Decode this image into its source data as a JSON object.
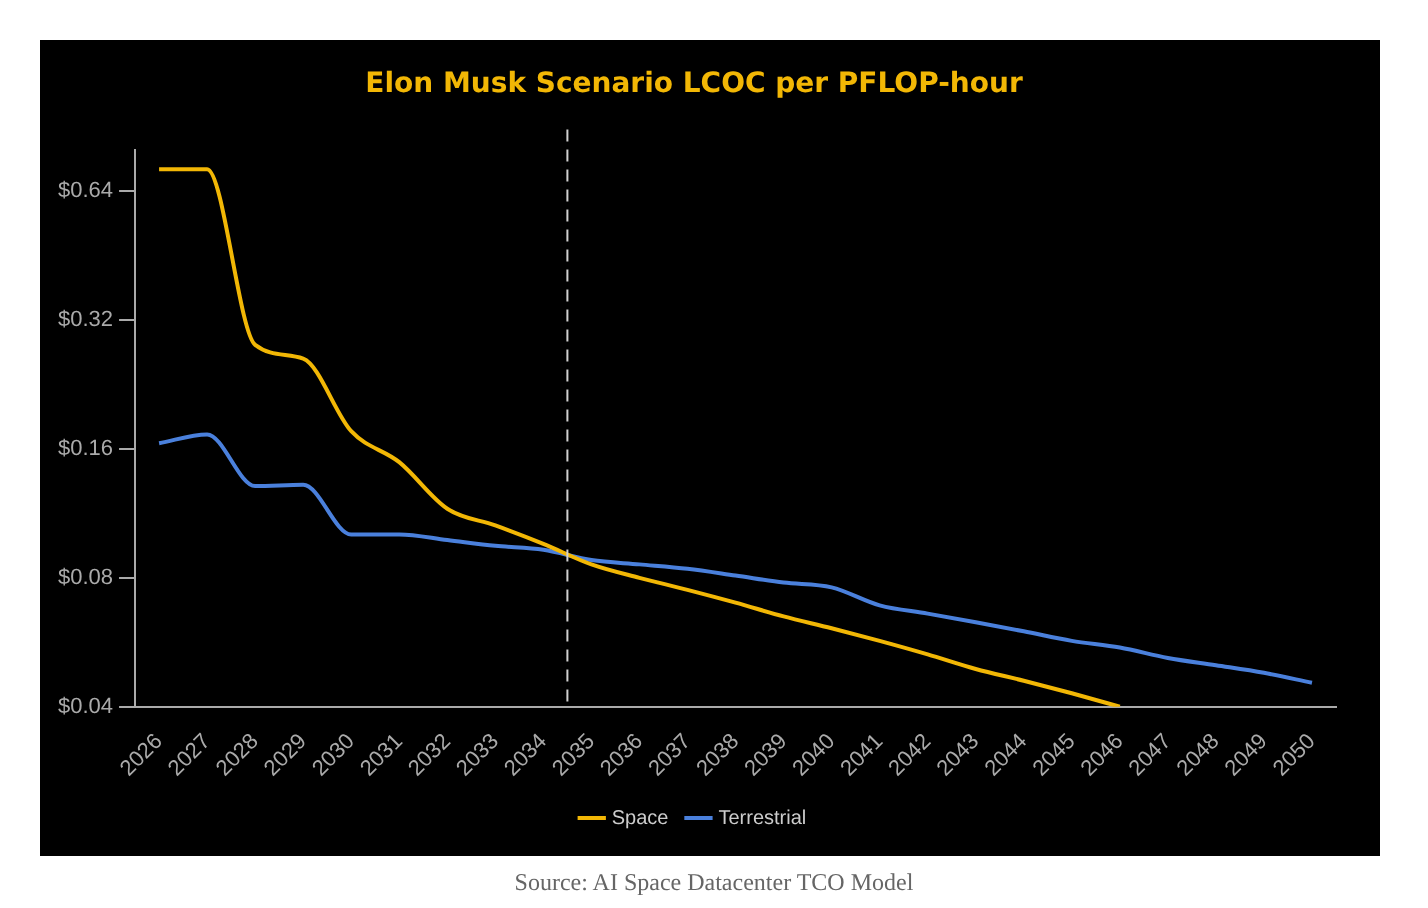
{
  "chart_data": {
    "type": "line",
    "title": "Elon Musk Scenario LCOC per PFLOP-hour",
    "categories": [
      "2026",
      "2027",
      "2028",
      "2029",
      "2030",
      "2031",
      "2032",
      "2033",
      "2034",
      "2035",
      "2036",
      "2037",
      "2038",
      "2039",
      "2040",
      "2041",
      "2042",
      "2043",
      "2044",
      "2045",
      "2046",
      "2047",
      "2048",
      "2049",
      "2050"
    ],
    "series": [
      {
        "name": "Space",
        "color": "#f2b705",
        "values": [
          0.72,
          0.72,
          0.28,
          0.26,
          0.176,
          0.149,
          0.116,
          0.106,
          0.096,
          0.086,
          0.08,
          0.075,
          0.07,
          0.065,
          0.061,
          0.057,
          0.053,
          0.049,
          0.046,
          0.043,
          0.04,
          null,
          null,
          null,
          null
        ]
      },
      {
        "name": "Terrestrial",
        "color": "#4a80dc",
        "values": [
          0.165,
          0.173,
          0.131,
          0.132,
          0.101,
          0.101,
          0.098,
          0.095,
          0.093,
          0.088,
          0.086,
          0.084,
          0.081,
          0.078,
          0.076,
          0.069,
          0.066,
          0.063,
          0.06,
          0.057,
          0.055,
          0.052,
          0.05,
          0.048,
          0.0455
        ]
      }
    ],
    "log": true,
    "ylim": [
      0.04,
      0.8
    ],
    "yticks": [
      {
        "value": 0.04,
        "label": "$0.04"
      },
      {
        "value": 0.08,
        "label": "$0.08"
      },
      {
        "value": 0.16,
        "label": "$0.16"
      },
      {
        "value": 0.32,
        "label": "$0.32"
      },
      {
        "value": 0.64,
        "label": "$0.64"
      }
    ],
    "ref_lines": [
      {
        "axis": "x",
        "value": "2035",
        "color": "#d0d0d0",
        "line_style": "dashed"
      }
    ],
    "grid": false,
    "legend": "bottom",
    "marker": "none",
    "line_style": "solid",
    "annotations": [
      "Source: AI Space Datacenter TCO Model"
    ]
  }
}
